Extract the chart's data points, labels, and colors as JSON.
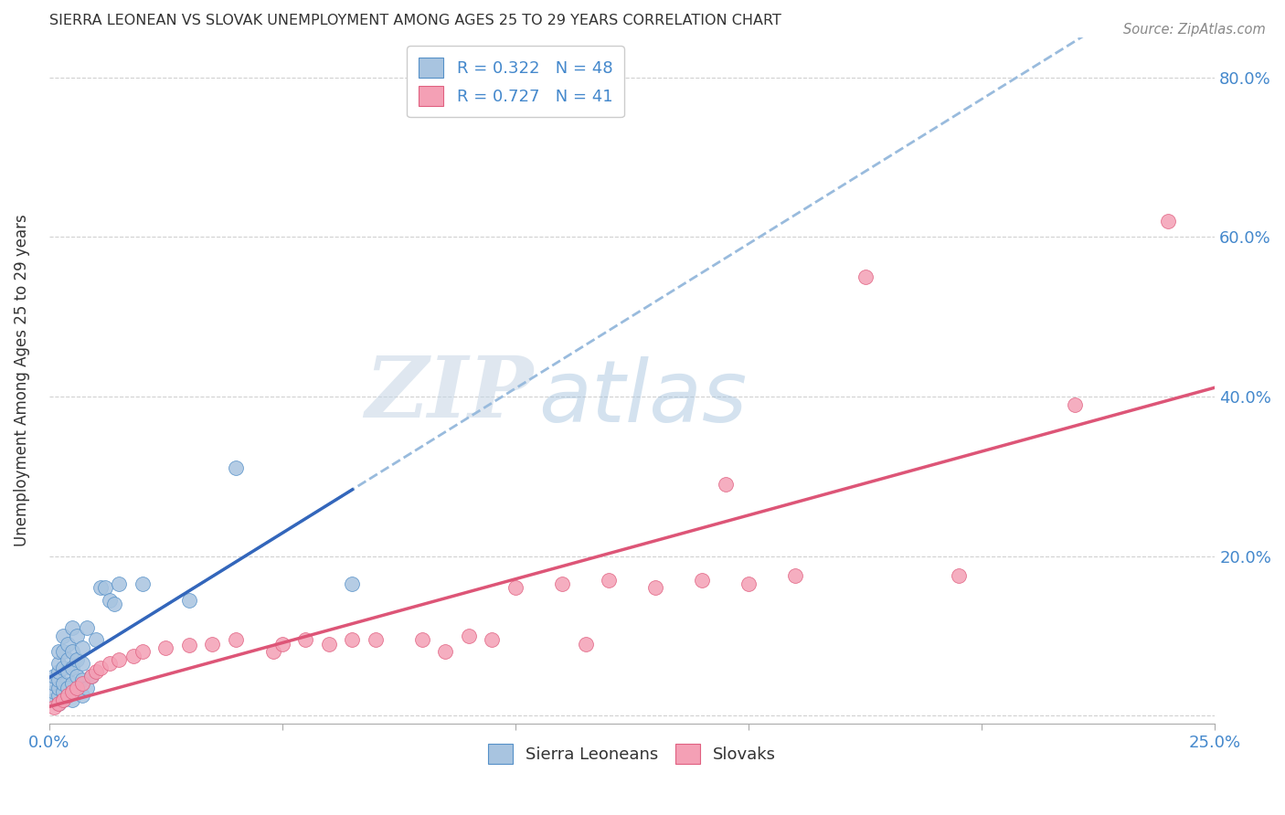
{
  "title": "SIERRA LEONEAN VS SLOVAK UNEMPLOYMENT AMONG AGES 25 TO 29 YEARS CORRELATION CHART",
  "source": "Source: ZipAtlas.com",
  "ylabel": "Unemployment Among Ages 25 to 29 years",
  "xlim": [
    0.0,
    0.25
  ],
  "ylim": [
    -0.01,
    0.85
  ],
  "xticks": [
    0.0,
    0.05,
    0.1,
    0.15,
    0.2,
    0.25
  ],
  "yticks": [
    0.0,
    0.2,
    0.4,
    0.6,
    0.8
  ],
  "xticklabels": [
    "0.0%",
    "",
    "",
    "",
    "",
    "25.0%"
  ],
  "yticklabels": [
    "",
    "20.0%",
    "40.0%",
    "60.0%",
    "80.0%"
  ],
  "legend_label1": "Sierra Leoneans",
  "legend_label2": "Slovaks",
  "R1": 0.322,
  "N1": 48,
  "R2": 0.727,
  "N2": 41,
  "color1": "#a8c4e0",
  "color2": "#f4a0b5",
  "edge_color1": "#5590c8",
  "edge_color2": "#e06080",
  "solid_line_color1": "#3366bb",
  "solid_line_color2": "#dd5577",
  "dashed_line_color": "#99bbdd",
  "sierra_x": [
    0.001,
    0.001,
    0.001,
    0.001,
    0.002,
    0.002,
    0.002,
    0.002,
    0.002,
    0.002,
    0.002,
    0.003,
    0.003,
    0.003,
    0.003,
    0.003,
    0.003,
    0.004,
    0.004,
    0.004,
    0.004,
    0.004,
    0.005,
    0.005,
    0.005,
    0.005,
    0.005,
    0.006,
    0.006,
    0.006,
    0.006,
    0.007,
    0.007,
    0.007,
    0.007,
    0.008,
    0.008,
    0.009,
    0.01,
    0.011,
    0.012,
    0.013,
    0.014,
    0.015,
    0.02,
    0.03,
    0.04,
    0.065
  ],
  "sierra_y": [
    0.02,
    0.03,
    0.04,
    0.05,
    0.015,
    0.025,
    0.035,
    0.045,
    0.055,
    0.065,
    0.08,
    0.02,
    0.03,
    0.04,
    0.06,
    0.08,
    0.1,
    0.025,
    0.035,
    0.055,
    0.07,
    0.09,
    0.02,
    0.04,
    0.06,
    0.08,
    0.11,
    0.03,
    0.05,
    0.07,
    0.1,
    0.025,
    0.045,
    0.065,
    0.085,
    0.035,
    0.11,
    0.05,
    0.095,
    0.16,
    0.16,
    0.145,
    0.14,
    0.165,
    0.165,
    0.145,
    0.31,
    0.165
  ],
  "slovak_x": [
    0.001,
    0.002,
    0.003,
    0.004,
    0.005,
    0.006,
    0.007,
    0.009,
    0.01,
    0.011,
    0.013,
    0.015,
    0.018,
    0.02,
    0.025,
    0.03,
    0.035,
    0.04,
    0.048,
    0.05,
    0.055,
    0.06,
    0.065,
    0.07,
    0.08,
    0.085,
    0.09,
    0.095,
    0.1,
    0.11,
    0.115,
    0.12,
    0.13,
    0.14,
    0.145,
    0.15,
    0.16,
    0.175,
    0.195,
    0.22,
    0.24
  ],
  "slovak_y": [
    0.01,
    0.015,
    0.02,
    0.025,
    0.03,
    0.035,
    0.04,
    0.05,
    0.055,
    0.06,
    0.065,
    0.07,
    0.075,
    0.08,
    0.085,
    0.088,
    0.09,
    0.095,
    0.08,
    0.09,
    0.095,
    0.09,
    0.095,
    0.095,
    0.095,
    0.08,
    0.1,
    0.095,
    0.16,
    0.165,
    0.09,
    0.17,
    0.16,
    0.17,
    0.29,
    0.165,
    0.175,
    0.55,
    0.175,
    0.39,
    0.62
  ],
  "watermark_zip": "ZIP",
  "watermark_atlas": "atlas",
  "background_color": "#ffffff",
  "grid_color": "#cccccc"
}
